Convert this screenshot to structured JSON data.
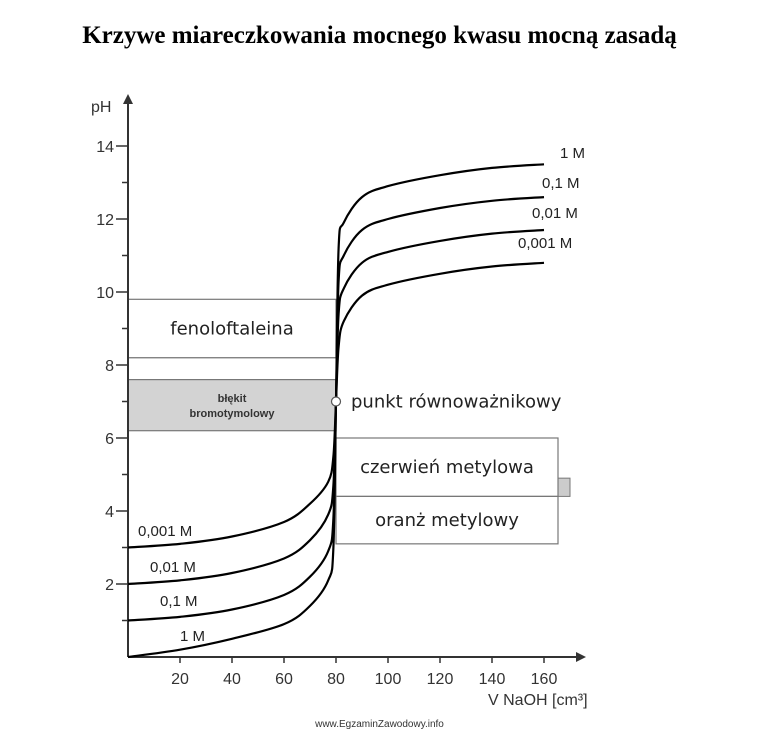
{
  "title": "Krzywe miareczkowania mocnego kwasu mocną zasadą",
  "footer": "www.EgzaminZawodowy.info",
  "chart_data": {
    "type": "line",
    "xlabel": "V NaOH [cm³]",
    "ylabel": "pH",
    "xlim": [
      0,
      170
    ],
    "ylim": [
      0,
      14.8
    ],
    "x_ticks": [
      20,
      40,
      60,
      80,
      100,
      120,
      140,
      160
    ],
    "y_ticks": [
      2,
      4,
      6,
      8,
      10,
      12,
      14
    ],
    "y_minor_ticks": [
      1,
      3,
      5,
      7,
      9,
      11,
      13
    ],
    "equivalence_point": {
      "x": 80,
      "y": 7,
      "label": "punkt równoważnikowy"
    },
    "series": [
      {
        "name": "1 M",
        "left_label": "1 M",
        "right_label": "1 M",
        "points": [
          [
            0,
            0
          ],
          [
            20,
            0.2
          ],
          [
            40,
            0.5
          ],
          [
            60,
            0.9
          ],
          [
            70,
            1.4
          ],
          [
            77,
            2.1
          ],
          [
            79,
            3.0
          ],
          [
            80,
            7
          ],
          [
            81,
            11.2
          ],
          [
            83,
            11.9
          ],
          [
            90,
            12.6
          ],
          [
            100,
            12.9
          ],
          [
            120,
            13.2
          ],
          [
            140,
            13.4
          ],
          [
            160,
            13.5
          ]
        ]
      },
      {
        "name": "0,1 M",
        "left_label": "0,1 M",
        "right_label": "0,1 M",
        "points": [
          [
            0,
            1
          ],
          [
            20,
            1.1
          ],
          [
            40,
            1.3
          ],
          [
            60,
            1.7
          ],
          [
            70,
            2.2
          ],
          [
            77,
            2.9
          ],
          [
            79,
            3.8
          ],
          [
            80,
            7
          ],
          [
            81,
            10.3
          ],
          [
            83,
            11.0
          ],
          [
            90,
            11.7
          ],
          [
            100,
            12.0
          ],
          [
            120,
            12.3
          ],
          [
            140,
            12.5
          ],
          [
            160,
            12.6
          ]
        ]
      },
      {
        "name": "0,01 M",
        "left_label": "0,01 M",
        "right_label": "0,01 M",
        "points": [
          [
            0,
            2
          ],
          [
            20,
            2.1
          ],
          [
            40,
            2.3
          ],
          [
            60,
            2.7
          ],
          [
            70,
            3.2
          ],
          [
            77,
            3.9
          ],
          [
            79,
            4.7
          ],
          [
            80,
            7
          ],
          [
            81,
            9.4
          ],
          [
            83,
            10.1
          ],
          [
            90,
            10.8
          ],
          [
            100,
            11.1
          ],
          [
            120,
            11.4
          ],
          [
            140,
            11.6
          ],
          [
            160,
            11.7
          ]
        ]
      },
      {
        "name": "0,001 M",
        "left_label": "0,001 M",
        "right_label": "0,001 M",
        "points": [
          [
            0,
            3
          ],
          [
            20,
            3.1
          ],
          [
            40,
            3.3
          ],
          [
            60,
            3.7
          ],
          [
            70,
            4.2
          ],
          [
            77,
            4.8
          ],
          [
            79,
            5.5
          ],
          [
            80,
            7
          ],
          [
            81,
            8.5
          ],
          [
            83,
            9.2
          ],
          [
            90,
            9.9
          ],
          [
            100,
            10.2
          ],
          [
            120,
            10.5
          ],
          [
            140,
            10.7
          ],
          [
            160,
            10.8
          ]
        ]
      }
    ],
    "indicator_bands": [
      {
        "name": "fenoloftaleina",
        "label": "fenoloftaleina",
        "x_from": 0,
        "x_to": 80,
        "y_from": 8.2,
        "y_to": 9.8,
        "fill": "#ffffff",
        "small": false
      },
      {
        "name": "blekit-bromotymolowy",
        "label": "błękit bromotymolowy",
        "line1": "błękit",
        "line2": "bromotymolowy",
        "x_from": 0,
        "x_to": 80,
        "y_from": 6.2,
        "y_to": 7.6,
        "fill": "#d3d3d3",
        "small": true
      },
      {
        "name": "czerwien-metylowa",
        "label": "czerwień metylowa",
        "x_from": 80,
        "x_to": 170,
        "y_from": 4.4,
        "y_to": 6.0,
        "fill": "#ffffff",
        "small": false
      },
      {
        "name": "oranz-metylowy",
        "label": "oranż metylowy",
        "x_from": 80,
        "x_to": 170,
        "y_from": 3.1,
        "y_to": 4.4,
        "fill": "#ffffff",
        "small": false
      }
    ],
    "colors": {
      "axis": "#333333",
      "curve": "#000000",
      "band_border": "#777777",
      "gray_band": "#d3d3d3",
      "strip": "#cccccc"
    },
    "grid": false
  }
}
